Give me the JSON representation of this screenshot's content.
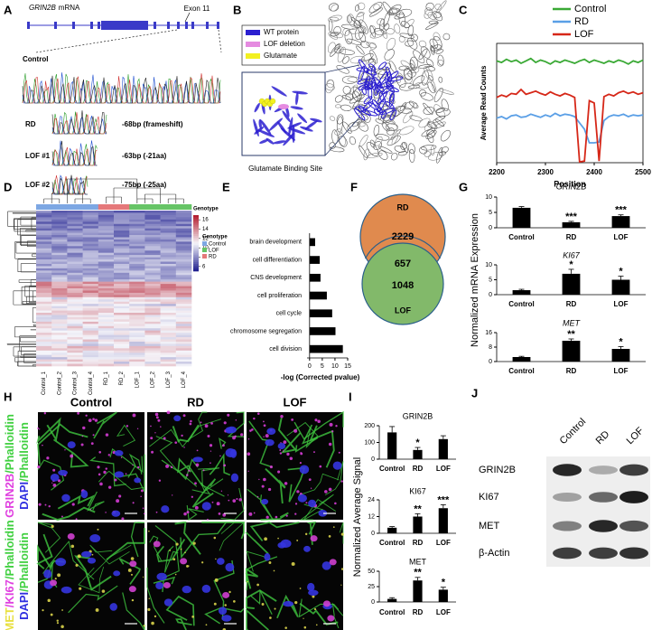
{
  "panels": {
    "a": {
      "letter": "A",
      "gene": "GRIN2B",
      "gene_suffix": "mRNA",
      "exon": "Exon 11",
      "control": "Control",
      "rows": [
        {
          "label": "RD",
          "note": "-68bp (frameshift)"
        },
        {
          "label": "LOF #1",
          "note": "-63bp (-21aa)"
        },
        {
          "label": "LOF #2",
          "note": "-75bp (-25aa)"
        }
      ]
    },
    "b": {
      "letter": "B",
      "legend": [
        {
          "name": "WT protein",
          "color": "#2b1fd0"
        },
        {
          "name": "LOF deletion",
          "color": "#e58be0"
        },
        {
          "name": "Glutamate",
          "color": "#f2f020"
        }
      ],
      "caption": "Glutamate Binding Site"
    },
    "d": {
      "letter": "D",
      "title": "Genotype",
      "legend_title": "Genotype",
      "genotypes": [
        {
          "name": "Control",
          "color": "#7da7e3"
        },
        {
          "name": "LOF",
          "color": "#66c466"
        },
        {
          "name": "RD",
          "color": "#e5787a"
        }
      ],
      "scale_ticks": [
        16,
        14,
        12,
        10,
        8,
        6
      ],
      "scale_lim": [
        5,
        17
      ],
      "samples": [
        "Control_1",
        "Control_2",
        "Control_3",
        "Control_4",
        "RD_1",
        "RD_2",
        "LOF_1",
        "LOF_2",
        "LOF_3",
        "LOF_4"
      ]
    },
    "f": {
      "letter": "F",
      "set_a": "RD",
      "set_b": "LOF",
      "only_a": 2229,
      "both": 657,
      "only_b": 1048,
      "color_a": "#e08a4e",
      "color_b": "#82b96a"
    },
    "g": {
      "letter": "G",
      "ylabel": "Normalized mRNA Expression"
    },
    "h": {
      "letter": "H",
      "columns": [
        "Control",
        "RD",
        "LOF"
      ],
      "rows": [
        {
          "lines": [
            [
              {
                "text": "GRIN2B",
                "color": "#e040e0"
              },
              {
                "text": "/Phalloidin",
                "color": "#40d040"
              }
            ],
            [
              {
                "text": "DAPI",
                "color": "#3030e0"
              },
              {
                "text": "/Phalloidin",
                "color": "#40d040"
              }
            ]
          ]
        },
        {
          "lines": [
            [
              {
                "text": "MET",
                "color": "#e8e040"
              },
              {
                "text": "/",
                "color": "#e040e0"
              },
              {
                "text": "KI67",
                "color": "#e040e0"
              },
              {
                "text": "/Phalloidin",
                "color": "#40d040"
              }
            ],
            [
              {
                "text": "DAPI",
                "color": "#3030e0"
              },
              {
                "text": "/Phalloidin",
                "color": "#40d040"
              }
            ]
          ]
        }
      ]
    },
    "i": {
      "letter": "I",
      "ylabel": "Normalized Average Signal"
    },
    "j": {
      "letter": "J",
      "lanes": [
        "Control",
        "RD",
        "LOF"
      ],
      "proteins": [
        "GRIN2B",
        "KI67",
        "MET",
        "β-Actin"
      ]
    }
  },
  "chart_data": [
    {
      "type": "line",
      "letter": "C",
      "xlabel": "Position",
      "ylabel": "Average Read Counts",
      "x": [
        2200,
        2210,
        2220,
        2230,
        2240,
        2250,
        2260,
        2270,
        2280,
        2290,
        2300,
        2310,
        2320,
        2330,
        2340,
        2350,
        2360,
        2370,
        2380,
        2390,
        2400,
        2410,
        2420,
        2430,
        2440,
        2450,
        2460,
        2470,
        2480,
        2490,
        2500
      ],
      "xlim": [
        2200,
        2500
      ],
      "xticks": [
        2200,
        2300,
        2400,
        2500
      ],
      "ylim": [
        0,
        15
      ],
      "series": [
        {
          "name": "Control",
          "color": "#3aa935",
          "values": [
            12.8,
            12.6,
            13.0,
            12.7,
            12.9,
            12.5,
            12.8,
            13.1,
            12.6,
            12.9,
            12.7,
            12.4,
            12.8,
            12.6,
            12.9,
            12.7,
            12.5,
            12.8,
            13.0,
            12.6,
            12.9,
            12.7,
            12.5,
            12.8,
            12.6,
            12.9,
            12.7,
            12.4,
            12.8,
            12.6,
            12.9
          ]
        },
        {
          "name": "RD",
          "color": "#5a9fe6",
          "values": [
            5.6,
            5.8,
            5.5,
            5.9,
            6.0,
            5.7,
            5.8,
            6.1,
            5.9,
            5.7,
            6.0,
            5.8,
            6.2,
            5.9,
            6.1,
            6.0,
            5.8,
            5.0,
            4.2,
            2.5,
            2.5,
            2.6,
            5.3,
            5.8,
            6.0,
            5.9,
            6.1,
            5.8,
            6.0,
            5.9,
            6.0
          ]
        },
        {
          "name": "LOF",
          "color": "#d62718",
          "values": [
            8.2,
            8.5,
            8.3,
            8.7,
            8.6,
            9.2,
            8.6,
            8.8,
            9.0,
            8.7,
            8.5,
            8.9,
            8.6,
            8.4,
            8.7,
            8.5,
            8.2,
            0.1,
            0.2,
            7.8,
            7.5,
            0.2,
            8.3,
            8.6,
            8.4,
            8.8,
            9.0,
            8.7,
            8.9,
            8.6,
            8.8
          ]
        }
      ]
    },
    {
      "type": "hbar",
      "letter": "E",
      "xlabel": "-log (Corrected pvalue)",
      "categories": [
        "brain development",
        "cell differentiation",
        "CNS development",
        "cell proliferation",
        "cell cycle",
        "chromosome segregation",
        "cell division"
      ],
      "values": [
        2.2,
        4.0,
        4.3,
        6.8,
        8.9,
        10.2,
        13.1
      ],
      "color": "#000000",
      "xlim": [
        -1,
        15
      ],
      "xticks": [
        0,
        5,
        10,
        15
      ]
    },
    {
      "type": "bar",
      "title": "GRIN2B",
      "title_italic": true,
      "categories": [
        "Control",
        "RD",
        "LOF"
      ],
      "values": [
        6.5,
        1.8,
        3.8
      ],
      "errors": [
        0.4,
        0.3,
        0.4
      ],
      "annotations": [
        null,
        "***",
        "***"
      ],
      "color": "#000000",
      "ylim": [
        0,
        10
      ],
      "yticks": [
        0,
        5,
        10
      ]
    },
    {
      "type": "bar",
      "title": "KI67",
      "title_italic": true,
      "categories": [
        "Control",
        "RD",
        "LOF"
      ],
      "values": [
        1.5,
        7.0,
        5.0
      ],
      "errors": [
        0.3,
        1.5,
        1.2
      ],
      "annotations": [
        null,
        "*",
        "*"
      ],
      "color": "#000000",
      "ylim": [
        0,
        10
      ],
      "yticks": [
        0,
        5,
        10
      ]
    },
    {
      "type": "bar",
      "title": "MET",
      "title_italic": true,
      "categories": [
        "Control",
        "RD",
        "LOF"
      ],
      "values": [
        2.5,
        11.5,
        7.0
      ],
      "errors": [
        0.4,
        1.0,
        1.3
      ],
      "annotations": [
        null,
        "**",
        "*"
      ],
      "color": "#000000",
      "ylim": [
        0,
        16
      ],
      "yticks": [
        0,
        8,
        16
      ]
    },
    {
      "type": "bar",
      "title": "GRIN2B",
      "title_italic": false,
      "categories": [
        "Control",
        "RD",
        "LOF"
      ],
      "values": [
        160,
        55,
        120
      ],
      "errors": [
        35,
        15,
        20
      ],
      "annotations": [
        null,
        "*",
        null
      ],
      "color": "#000000",
      "ylim": [
        0,
        200
      ],
      "yticks": [
        0,
        100,
        200
      ]
    },
    {
      "type": "bar",
      "title": "KI67",
      "title_italic": false,
      "categories": [
        "Control",
        "RD",
        "LOF"
      ],
      "values": [
        4,
        12,
        18
      ],
      "errors": [
        0.8,
        2,
        2.5
      ],
      "annotations": [
        null,
        "**",
        "***"
      ],
      "color": "#000000",
      "ylim": [
        0,
        24
      ],
      "yticks": [
        0,
        12,
        24
      ]
    },
    {
      "type": "bar",
      "title": "MET",
      "title_italic": false,
      "categories": [
        "Control",
        "RD",
        "LOF"
      ],
      "values": [
        5,
        35,
        20
      ],
      "errors": [
        2,
        5,
        4
      ],
      "annotations": [
        null,
        "**",
        "*"
      ],
      "color": "#000000",
      "ylim": [
        0,
        50
      ],
      "yticks": [
        0,
        25,
        50
      ]
    }
  ]
}
